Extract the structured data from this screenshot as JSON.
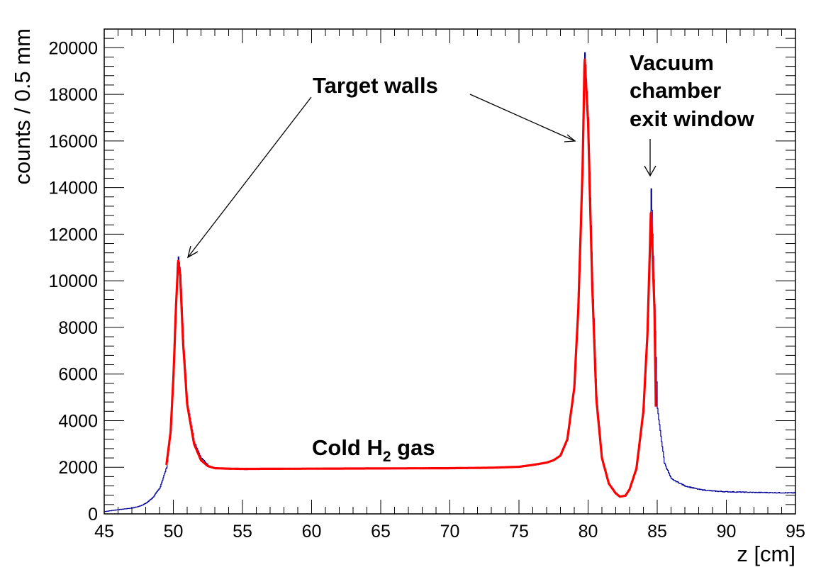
{
  "chart_data": {
    "type": "line",
    "xlabel": "z [cm]",
    "ylabel": "counts / 0.5 mm",
    "xlim": [
      45,
      95
    ],
    "ylim": [
      0,
      20800
    ],
    "x_ticks": [
      "45",
      "50",
      "55",
      "60",
      "65",
      "70",
      "75",
      "80",
      "85",
      "90",
      "95"
    ],
    "y_ticks": [
      "0",
      "2000",
      "4000",
      "6000",
      "8000",
      "10000",
      "12000",
      "14000",
      "16000",
      "18000",
      "20000"
    ],
    "grid": false,
    "series": [
      {
        "role": "histogram",
        "color": "#000099",
        "x": [
          45,
          46,
          47,
          47.5,
          48,
          48.5,
          49,
          49.5,
          49.8,
          50,
          50.2,
          50.35,
          50.5,
          50.7,
          51,
          51.5,
          52,
          52.5,
          53,
          54,
          55,
          60,
          65,
          70,
          73,
          75,
          76,
          77,
          77.5,
          78,
          78.5,
          79,
          79.3,
          79.6,
          79.75,
          80,
          80.3,
          80.6,
          81,
          81.5,
          82,
          82.3,
          82.7,
          83,
          83.5,
          84,
          84.3,
          84.55,
          84.8,
          85,
          85.5,
          86,
          87,
          88,
          89,
          90,
          92,
          95
        ],
        "y": [
          100,
          180,
          250,
          320,
          450,
          700,
          1100,
          2000,
          3500,
          6000,
          9200,
          11000,
          10300,
          7500,
          4800,
          3100,
          2400,
          2100,
          1950,
          1930,
          1920,
          1940,
          1950,
          1960,
          1980,
          2020,
          2100,
          2200,
          2300,
          2500,
          3200,
          5500,
          9000,
          15000,
          19800,
          17000,
          10000,
          5000,
          2400,
          1300,
          900,
          750,
          800,
          1100,
          2000,
          4500,
          8000,
          14000,
          9000,
          4500,
          2200,
          1500,
          1200,
          1050,
          980,
          950,
          920,
          900
        ]
      },
      {
        "role": "fit",
        "color": "#ff0000",
        "x": [
          49.5,
          49.8,
          50,
          50.2,
          50.35,
          50.5,
          50.7,
          51,
          51.5,
          52,
          52.5,
          53,
          54,
          55,
          60,
          65,
          70,
          73,
          75,
          76,
          77,
          77.5,
          78,
          78.5,
          79,
          79.3,
          79.6,
          79.75,
          80,
          80.3,
          80.6,
          81,
          81.5,
          82,
          82.3,
          82.7,
          83,
          83.5,
          84,
          84.3,
          84.55,
          84.8,
          84.9
        ],
        "y": [
          2100,
          3500,
          5800,
          9000,
          10900,
          10200,
          7400,
          4700,
          3000,
          2300,
          2050,
          1960,
          1940,
          1930,
          1940,
          1950,
          1960,
          1980,
          2020,
          2100,
          2200,
          2300,
          2500,
          3200,
          5400,
          8900,
          14800,
          19600,
          16800,
          9800,
          4900,
          2400,
          1300,
          880,
          740,
          780,
          1050,
          1950,
          4400,
          7800,
          13100,
          8800,
          4600
        ]
      }
    ],
    "annotations": [
      {
        "text": "Target walls"
      },
      {
        "text": "Vacuum"
      },
      {
        "text": "chamber"
      },
      {
        "text": "exit window"
      },
      {
        "text": "Cold H",
        "sub": "2",
        "tail": " gas"
      }
    ]
  }
}
